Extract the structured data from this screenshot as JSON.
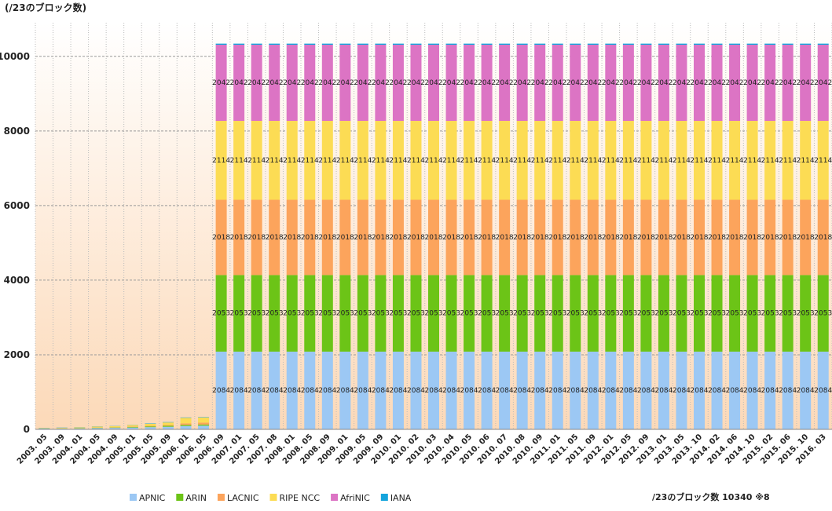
{
  "chart_data": {
    "type": "stacked_bar",
    "y_axis_label": "(/23のブロック数)",
    "note": "/23のブロック数 10340 ※8",
    "categories": [
      "2003. 05",
      "2003. 09",
      "2004. 01",
      "2004. 05",
      "2004. 09",
      "2005. 01",
      "2005. 05",
      "2005. 09",
      "2006. 01",
      "2006. 05",
      "2006. 09",
      "2007. 01",
      "2007. 05",
      "2007. 08",
      "2008. 01",
      "2008. 05",
      "2008. 09",
      "2009. 01",
      "2009. 05",
      "2009. 09",
      "2010. 01",
      "2010. 02",
      "2010. 03",
      "2010. 04",
      "2010. 05",
      "2010. 06",
      "2010. 07",
      "2010. 08",
      "2010. 09",
      "2011. 01",
      "2011. 05",
      "2011. 09",
      "2012. 01",
      "2012. 05",
      "2012. 09",
      "2013. 01",
      "2013. 05",
      "2013. 10",
      "2014. 02",
      "2014. 06",
      "2014. 10",
      "2015. 02",
      "2015. 06",
      "2015. 10",
      "2016. 03"
    ],
    "series": [
      {
        "name": "APNIC",
        "color": "#9cc8f4",
        "values": [
          20,
          22,
          25,
          35,
          40,
          50,
          60,
          70,
          90,
          100,
          2084,
          2084,
          2084,
          2084,
          2084,
          2084,
          2084,
          2084,
          2084,
          2084,
          2084,
          2084,
          2084,
          2084,
          2084,
          2084,
          2084,
          2084,
          2084,
          2084,
          2084,
          2084,
          2084,
          2084,
          2084,
          2084,
          2084,
          2084,
          2084,
          2084,
          2084,
          2084,
          2084,
          2084,
          2084
        ]
      },
      {
        "name": "ARIN",
        "color": "#6cc417",
        "values": [
          5,
          5,
          8,
          10,
          10,
          15,
          20,
          25,
          30,
          30,
          2053,
          2053,
          2053,
          2053,
          2053,
          2053,
          2053,
          2053,
          2053,
          2053,
          2053,
          2053,
          2053,
          2053,
          2053,
          2053,
          2053,
          2053,
          2053,
          2053,
          2053,
          2053,
          2053,
          2053,
          2053,
          2053,
          2053,
          2053,
          2053,
          2053,
          2053,
          2053,
          2053,
          2053,
          2053
        ]
      },
      {
        "name": "LACNIC",
        "color": "#fca45c",
        "values": [
          2,
          3,
          4,
          5,
          6,
          10,
          15,
          20,
          40,
          50,
          2018,
          2018,
          2018,
          2018,
          2018,
          2018,
          2018,
          2018,
          2018,
          2018,
          2018,
          2018,
          2018,
          2018,
          2018,
          2018,
          2018,
          2018,
          2018,
          2018,
          2018,
          2018,
          2018,
          2018,
          2018,
          2018,
          2018,
          2018,
          2018,
          2018,
          2018,
          2018,
          2018,
          2018,
          2018
        ]
      },
      {
        "name": "RIPE NCC",
        "color": "#fcdc54",
        "values": [
          10,
          12,
          15,
          25,
          30,
          40,
          55,
          70,
          150,
          140,
          2114,
          2114,
          2114,
          2114,
          2114,
          2114,
          2114,
          2114,
          2114,
          2114,
          2114,
          2114,
          2114,
          2114,
          2114,
          2114,
          2114,
          2114,
          2114,
          2114,
          2114,
          2114,
          2114,
          2114,
          2114,
          2114,
          2114,
          2114,
          2114,
          2114,
          2114,
          2114,
          2114,
          2114,
          2114
        ]
      },
      {
        "name": "AfriNIC",
        "color": "#dc74c4",
        "values": [
          0,
          0,
          0,
          0,
          0,
          0,
          0,
          0,
          0,
          0,
          2042,
          2042,
          2042,
          2042,
          2042,
          2042,
          2042,
          2042,
          2042,
          2042,
          2042,
          2042,
          2042,
          2042,
          2042,
          2042,
          2042,
          2042,
          2042,
          2042,
          2042,
          2042,
          2042,
          2042,
          2042,
          2042,
          2042,
          2042,
          2042,
          2042,
          2042,
          2042,
          2042,
          2042,
          2042
        ]
      },
      {
        "name": "IANA",
        "color": "#14a4dc",
        "values": [
          5,
          5,
          5,
          5,
          5,
          5,
          10,
          10,
          10,
          10,
          29,
          29,
          29,
          29,
          29,
          29,
          29,
          29,
          29,
          29,
          29,
          29,
          29,
          29,
          29,
          29,
          29,
          29,
          29,
          29,
          29,
          29,
          29,
          29,
          29,
          29,
          29,
          29,
          29,
          29,
          29,
          29,
          29,
          29,
          29
        ]
      }
    ],
    "ylim": [
      0,
      10900
    ],
    "yticks": [
      0,
      2000,
      4000,
      6000,
      8000,
      10000
    ],
    "grid": true
  }
}
